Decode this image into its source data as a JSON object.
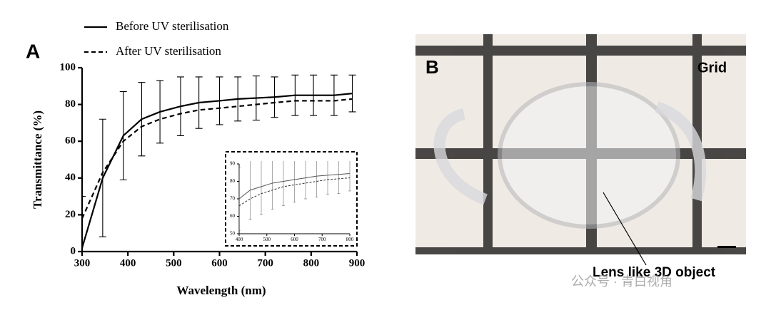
{
  "chart_data": [
    {
      "type": "line",
      "panel_label": "A",
      "xlabel": "Wavelength (nm)",
      "ylabel": "Transmittance (%)",
      "x": [
        300,
        345,
        390,
        430,
        470,
        515,
        555,
        600,
        640,
        680,
        720,
        765,
        805,
        850,
        890
      ],
      "xlim": [
        300,
        900
      ],
      "xticks": [
        300,
        400,
        500,
        600,
        700,
        800,
        900
      ],
      "ylim": [
        0,
        100
      ],
      "yticks": [
        0,
        20,
        40,
        60,
        80,
        100
      ],
      "series": [
        {
          "name": "Before UV sterilisation",
          "color": "#000000",
          "dash": false,
          "values": [
            2,
            40,
            63,
            72,
            76,
            79,
            81,
            82,
            83,
            83.5,
            84,
            85,
            85,
            85,
            86
          ],
          "errors": [
            28,
            32,
            24,
            20,
            17,
            16,
            14,
            13,
            12,
            12,
            11,
            11,
            11,
            11,
            10
          ]
        },
        {
          "name": "After UV sterilisation",
          "color": "#000000",
          "dash": true,
          "values": [
            18,
            43,
            60,
            68,
            72,
            75,
            77,
            78,
            79,
            80,
            81,
            82,
            82,
            82,
            83
          ]
        }
      ]
    },
    {
      "type": "line",
      "x": [
        400,
        440,
        480,
        520,
        560,
        600,
        640,
        680,
        720,
        760,
        800
      ],
      "xlim": [
        400,
        800
      ],
      "xticks": [
        400,
        500,
        600,
        700,
        800
      ],
      "ylim": [
        50,
        90
      ],
      "yticks": [
        50,
        60,
        70,
        80,
        90
      ],
      "series": [
        {
          "color": "#555555",
          "dash": false,
          "values": [
            70,
            75,
            77,
            79,
            80,
            81,
            82,
            83,
            83.5,
            84,
            84.5
          ],
          "errors": [
            18,
            17,
            16,
            15,
            14,
            13,
            12,
            12,
            11,
            11,
            10
          ]
        },
        {
          "color": "#333333",
          "dash": true,
          "values": [
            66,
            70,
            73,
            75,
            77,
            78,
            79,
            80,
            81,
            81.5,
            82
          ]
        }
      ]
    }
  ],
  "panel_b": {
    "label": "B",
    "grid_label": "Grid",
    "annotation": "Lens like 3D object"
  },
  "watermark": "公众号 · 青白视角"
}
